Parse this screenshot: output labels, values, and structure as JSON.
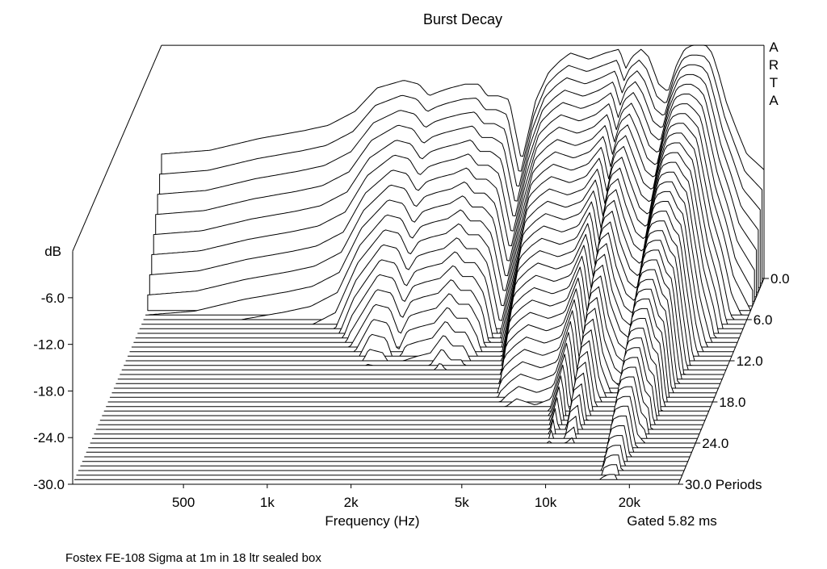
{
  "chart_data": {
    "type": "waterfall",
    "title": "Burst Decay",
    "brand": "ARTA",
    "xlabel": "Frequency (Hz)",
    "x_scale": "log",
    "xlim": [
      200,
      30000
    ],
    "x_ticks": [
      {
        "value": 500,
        "label": "500"
      },
      {
        "value": 1000,
        "label": "1k"
      },
      {
        "value": 2000,
        "label": "2k"
      },
      {
        "value": 5000,
        "label": "5k"
      },
      {
        "value": 10000,
        "label": "10k"
      },
      {
        "value": 20000,
        "label": "20k"
      }
    ],
    "ylabel": "dB",
    "ylim": [
      -30,
      0
    ],
    "y_ticks": [
      {
        "value": -6,
        "label": "-6.0"
      },
      {
        "value": -12,
        "label": "-12.0"
      },
      {
        "value": -18,
        "label": "-18.0"
      },
      {
        "value": -24,
        "label": "-24.0"
      },
      {
        "value": -30,
        "label": "-30.0"
      }
    ],
    "z_ticks": [
      {
        "value": 0,
        "label": "0.0"
      },
      {
        "value": 6,
        "label": "6.0"
      },
      {
        "value": 12,
        "label": "12.0"
      },
      {
        "value": 18,
        "label": "18.0"
      },
      {
        "value": 24,
        "label": "24.0"
      },
      {
        "value": 30,
        "label": "30.0 Periods"
      }
    ],
    "zlim": [
      0,
      30
    ],
    "z_unit": "Periods",
    "gating_note": "Gated 5.82 ms",
    "caption": "Fostex FE-108 Sigma at 1m in 18 ltr sealed box",
    "slice_count": 46,
    "envelope_frequencies_hz": [
      200,
      300,
      450,
      650,
      800,
      1000,
      1200,
      1500,
      1700,
      1850,
      2000,
      2200,
      2500,
      2800,
      3000,
      3300,
      3600,
      4000,
      4500,
      5000,
      5500,
      6000,
      7000,
      8000,
      9000,
      9500,
      10000,
      10800,
      11500,
      12500,
      13500,
      14500,
      15500,
      16500,
      17500,
      18500,
      19500,
      20500,
      22000,
      24000,
      26000,
      30000
    ],
    "initial_level_db": [
      -14,
      -13.5,
      -12,
      -11,
      -10.3,
      -8.5,
      -5.5,
      -4.5,
      -5,
      -6.5,
      -6,
      -5.5,
      -5,
      -5,
      -6.5,
      -6.5,
      -7,
      -15,
      -7,
      -3.5,
      -2,
      -1,
      -1.8,
      -1,
      -0.5,
      -3,
      -1.5,
      -0.5,
      -1.5,
      -5,
      -6,
      -2.5,
      -0.5,
      0,
      0,
      0,
      -1,
      -3.5,
      -7.5,
      -11,
      -14,
      -16
    ],
    "decay_db_per_period": [
      3,
      3,
      3,
      3,
      3,
      3,
      2.5,
      2,
      2,
      2.2,
      2,
      2,
      2,
      1.8,
      1.8,
      1.8,
      2,
      2,
      2,
      1.5,
      1.5,
      1.5,
      1.5,
      1.5,
      1.2,
      1.5,
      1.2,
      1.2,
      1.5,
      1.5,
      1.5,
      1.2,
      1,
      1,
      1,
      1.2,
      1.2,
      1.5,
      1.8,
      2,
      2.5,
      3
    ]
  }
}
